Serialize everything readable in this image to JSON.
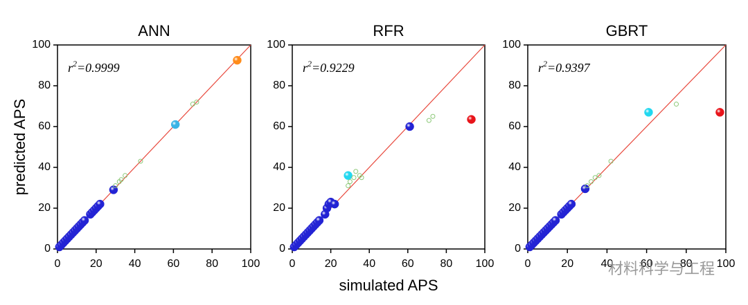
{
  "chart_data": [
    {
      "type": "scatter",
      "title": "ANN",
      "annotation": [
        "r",
        "2",
        "=0.9999"
      ],
      "ylabel": "predicted APS",
      "xlim": [
        0,
        100
      ],
      "ylim": [
        0,
        100
      ],
      "xticks": [
        0,
        20,
        40,
        60,
        80,
        100
      ],
      "yticks": [
        0,
        20,
        40,
        60,
        80,
        100
      ],
      "fit_line_color": "#e8483c",
      "series": [
        {
          "color": "#2323d4",
          "marker": "sphere",
          "x": [
            1,
            2,
            3,
            4,
            5,
            6,
            7,
            8,
            9,
            10,
            11,
            12,
            13,
            14,
            17,
            18,
            19,
            20,
            21,
            22,
            29
          ],
          "values": [
            1,
            2,
            3,
            4,
            5,
            6,
            7,
            8,
            9,
            10,
            11,
            12,
            13,
            14,
            17,
            18,
            19,
            20,
            21,
            22,
            29
          ]
        },
        {
          "color": "#3cb4e6",
          "marker": "sphere",
          "x": [
            61
          ],
          "values": [
            61
          ]
        },
        {
          "color": "#ff8c1a",
          "marker": "sphere",
          "x": [
            93
          ],
          "values": [
            92.5
          ]
        },
        {
          "color": "#8cc878",
          "marker": "open",
          "x": [
            30,
            32,
            33,
            35,
            43,
            70,
            72
          ],
          "values": [
            31,
            33,
            34,
            36,
            43,
            71,
            72
          ]
        }
      ]
    },
    {
      "type": "scatter",
      "title": "RFR",
      "annotation": [
        "r",
        "2",
        "=0.9229"
      ],
      "xlabel": "simulated APS",
      "xlim": [
        0,
        100
      ],
      "ylim": [
        0,
        100
      ],
      "xticks": [
        0,
        20,
        40,
        60,
        80,
        100
      ],
      "yticks": [
        0,
        20,
        40,
        60,
        80,
        100
      ],
      "fit_line_color": "#e8483c",
      "series": [
        {
          "color": "#2323d4",
          "marker": "sphere",
          "x": [
            1,
            2,
            3,
            4,
            5,
            6,
            7,
            8,
            9,
            10,
            11,
            12,
            13,
            14,
            17,
            18,
            19,
            20,
            22,
            61
          ],
          "values": [
            1,
            2,
            3,
            4,
            5,
            6,
            7,
            8,
            9,
            10,
            11,
            12,
            13,
            14,
            17,
            20,
            22,
            23,
            22,
            60
          ]
        },
        {
          "color": "#22d8f0",
          "marker": "sphere",
          "x": [
            29
          ],
          "values": [
            36
          ]
        },
        {
          "color": "#e8141a",
          "marker": "sphere",
          "x": [
            93
          ],
          "values": [
            63.5
          ]
        },
        {
          "color": "#8cc878",
          "marker": "open",
          "x": [
            29,
            30,
            32,
            33,
            35,
            36,
            71,
            73
          ],
          "values": [
            31,
            33,
            35,
            38,
            36,
            35,
            63,
            65
          ]
        }
      ]
    },
    {
      "type": "scatter",
      "title": "GBRT",
      "annotation": [
        "r",
        "2",
        "=0.9397"
      ],
      "xlim": [
        0,
        100
      ],
      "ylim": [
        0,
        100
      ],
      "xticks": [
        0,
        20,
        40,
        60,
        80,
        100
      ],
      "yticks": [
        0,
        20,
        40,
        60,
        80,
        100
      ],
      "fit_line_color": "#e8483c",
      "series": [
        {
          "color": "#2323d4",
          "marker": "sphere",
          "x": [
            1,
            2,
            3,
            4,
            5,
            6,
            7,
            8,
            9,
            10,
            11,
            12,
            13,
            14,
            17,
            18,
            19,
            20,
            21,
            22,
            29
          ],
          "values": [
            1,
            2,
            3,
            4,
            5,
            6,
            7,
            8,
            9,
            10,
            11,
            12,
            13,
            14,
            17,
            18,
            19,
            20,
            21,
            22,
            29.5
          ]
        },
        {
          "color": "#22d8f0",
          "marker": "sphere",
          "x": [
            61
          ],
          "values": [
            67
          ]
        },
        {
          "color": "#e8141a",
          "marker": "sphere",
          "x": [
            97
          ],
          "values": [
            67
          ]
        },
        {
          "color": "#8cc878",
          "marker": "open",
          "x": [
            30,
            32,
            34,
            36,
            42,
            75
          ],
          "values": [
            31,
            33,
            35,
            36,
            43,
            71
          ]
        }
      ]
    }
  ],
  "watermark": "材料科学与工程"
}
